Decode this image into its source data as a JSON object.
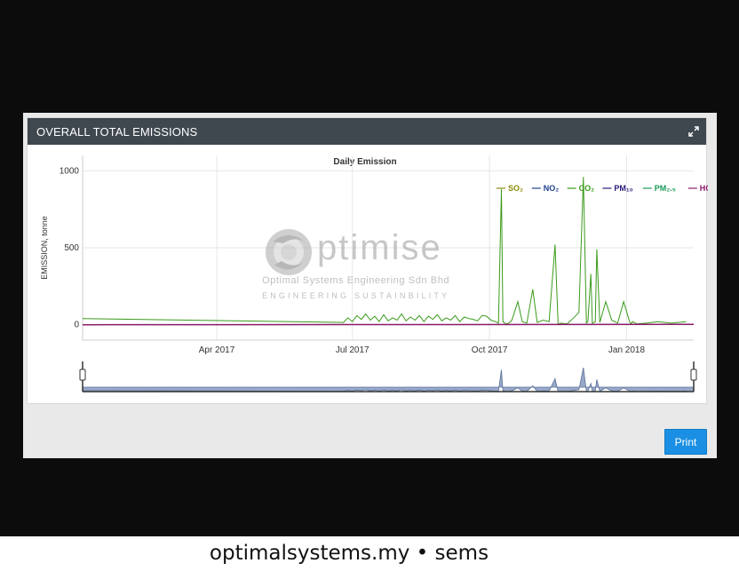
{
  "panel": {
    "title": "OVERALL TOTAL EMISSIONS",
    "expand_icon": "expand-arrows-icon"
  },
  "watermark": {
    "word": "ptimise",
    "line1": "Optimal Systems Engineering Sdn Bhd",
    "line2": "ENGINEERING SUSTAINBILITY"
  },
  "print_label": "Print",
  "footer": "optimalsystems.my • sems",
  "chart_data": {
    "type": "line",
    "title": "Daily Emission",
    "ylabel": "EMISSION, tonne",
    "xlabel": "",
    "ylim": [
      -100,
      1100
    ],
    "yticks": [
      0,
      500,
      1000
    ],
    "xlim": [
      "2017-01-01",
      "2018-02-15"
    ],
    "xticks": [
      {
        "date": "2017-04-01",
        "label": "Apr 2017"
      },
      {
        "date": "2017-07-01",
        "label": "Jul 2017"
      },
      {
        "date": "2017-10-01",
        "label": "Oct 2017"
      },
      {
        "date": "2018-01-01",
        "label": "Jan 2018"
      }
    ],
    "grid": true,
    "legend_position": "top-right",
    "range_selector": true,
    "legend": [
      {
        "name": "SO₂",
        "color": "#8a8a0a"
      },
      {
        "name": "NO₂",
        "color": "#1f3f8f"
      },
      {
        "name": "CO₂",
        "color": "#3a9a1a"
      },
      {
        "name": "PM₁₀",
        "color": "#2a1a7a"
      },
      {
        "name": "PM₂.₅",
        "color": "#1a9a5a"
      },
      {
        "name": "HC",
        "color": "#8a1a6a"
      }
    ],
    "series": [
      {
        "name": "CO₂",
        "x": [
          "2017-01-01",
          "2017-06-25",
          "2017-06-28",
          "2017-07-01",
          "2017-07-04",
          "2017-07-07",
          "2017-07-10",
          "2017-07-13",
          "2017-07-16",
          "2017-07-19",
          "2017-07-22",
          "2017-07-25",
          "2017-07-28",
          "2017-07-31",
          "2017-08-03",
          "2017-08-06",
          "2017-08-09",
          "2017-08-12",
          "2017-08-15",
          "2017-08-18",
          "2017-08-21",
          "2017-08-24",
          "2017-08-27",
          "2017-08-30",
          "2017-09-02",
          "2017-09-05",
          "2017-09-08",
          "2017-09-11",
          "2017-09-14",
          "2017-09-17",
          "2017-09-20",
          "2017-09-23",
          "2017-09-26",
          "2017-09-29",
          "2017-10-02",
          "2017-10-05",
          "2017-10-07",
          "2017-10-09",
          "2017-10-10",
          "2017-10-12",
          "2017-10-14",
          "2017-10-16",
          "2017-10-20",
          "2017-10-23",
          "2017-10-26",
          "2017-10-30",
          "2017-11-02",
          "2017-11-06",
          "2017-11-10",
          "2017-11-14",
          "2017-11-16",
          "2017-11-18",
          "2017-11-22",
          "2017-11-26",
          "2017-11-30",
          "2017-12-03",
          "2017-12-05",
          "2017-12-06",
          "2017-12-08",
          "2017-12-09",
          "2017-12-11",
          "2017-12-12",
          "2017-12-14",
          "2017-12-18",
          "2017-12-22",
          "2017-12-26",
          "2017-12-30",
          "2018-01-03",
          "2018-01-04",
          "2018-01-05",
          "2018-01-08",
          "2018-01-14",
          "2018-01-22",
          "2018-01-31",
          "2018-02-10"
        ],
        "values": [
          40,
          15,
          45,
          20,
          60,
          35,
          70,
          30,
          55,
          20,
          65,
          25,
          45,
          30,
          70,
          25,
          50,
          30,
          60,
          20,
          55,
          35,
          65,
          25,
          45,
          30,
          60,
          20,
          50,
          40,
          35,
          25,
          60,
          55,
          30,
          20,
          10,
          880,
          20,
          5,
          10,
          30,
          150,
          20,
          10,
          230,
          15,
          30,
          20,
          520,
          5,
          10,
          5,
          40,
          80,
          960,
          10,
          20,
          330,
          10,
          20,
          490,
          15,
          150,
          30,
          10,
          150,
          20,
          5,
          20,
          5,
          10,
          20,
          10,
          20
        ]
      },
      {
        "name": "HC",
        "x": [
          "2017-01-01",
          "2018-02-15"
        ],
        "values": [
          0,
          2
        ]
      }
    ]
  }
}
